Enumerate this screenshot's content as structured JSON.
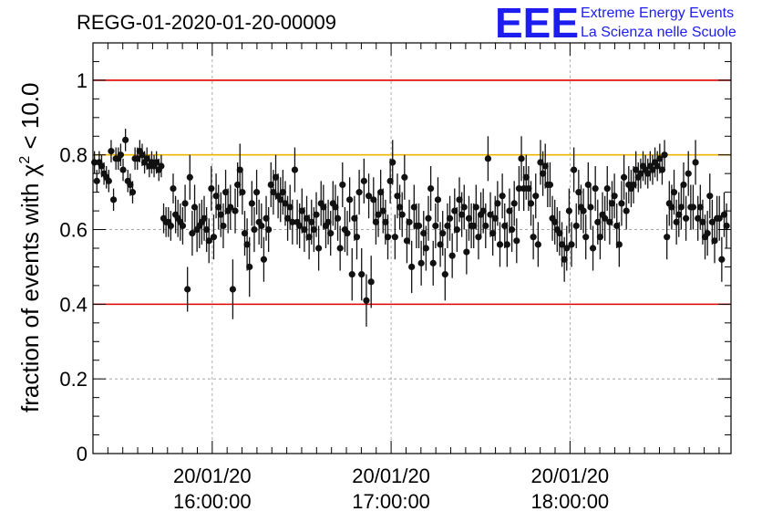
{
  "chart_data": {
    "type": "scatter",
    "title": "REGG-01-2020-01-20-00009",
    "ylabel_prefix": "fraction of events with χ",
    "ylabel_sup": "2",
    "ylabel_suffix": " < 10.0",
    "ylim": [
      0,
      1.1
    ],
    "y_ticks": [
      0,
      0.2,
      0.4,
      0.6,
      0.8,
      1
    ],
    "y_tick_labels": [
      "0",
      "0.2",
      "0.4",
      "0.6",
      "0.8",
      "1"
    ],
    "x_axis": "time",
    "x_range_minutes": [
      -40,
      174
    ],
    "x_ticks": [
      {
        "minute": 0,
        "date": "20/01/20",
        "time": "16:00:00"
      },
      {
        "minute": 60,
        "date": "20/01/20",
        "time": "17:00:00"
      },
      {
        "minute": 120,
        "date": "20/01/20",
        "time": "18:00:00"
      }
    ],
    "grid": true,
    "reference_lines": [
      {
        "y": 1.0,
        "color": "#e00000"
      },
      {
        "y": 0.8,
        "color": "#f0b400"
      },
      {
        "y": 0.4,
        "color": "#e00000"
      }
    ],
    "marker_color": "#111111",
    "point_minutes_start": -39.5,
    "point_minutes_step": 0.8,
    "series": [
      {
        "y": [
          0.78,
          0.73,
          0.78,
          0.77,
          0.75,
          0.74,
          0.73,
          0.81,
          0.68,
          0.79,
          0.79,
          0.8,
          0.76,
          0.84,
          0.73,
          0.72,
          0.7,
          0.79,
          0.79,
          0.81,
          0.8,
          0.78,
          0.79,
          0.77,
          0.78,
          0.77,
          0.78,
          0.76,
          0.77,
          0.63,
          0.62,
          0.62,
          0.61,
          0.71,
          0.64,
          0.63,
          0.62,
          0.61,
          0.67,
          0.44,
          0.74,
          0.59,
          0.66,
          0.6,
          0.61,
          0.62,
          0.63,
          0.6,
          0.57,
          0.71,
          0.58,
          0.69,
          0.66,
          0.64,
          0.61,
          0.7,
          0.65,
          0.66,
          0.44,
          0.65,
          0.72,
          0.76,
          0.7,
          0.59,
          0.56,
          0.5,
          0.67,
          0.6,
          0.7,
          0.62,
          0.61,
          0.52,
          0.63,
          0.6,
          0.72,
          0.7,
          0.74,
          0.69,
          0.68,
          0.7,
          0.67,
          0.63,
          0.66,
          0.62,
          0.76,
          0.62,
          0.61,
          0.65,
          0.6,
          0.63,
          0.58,
          0.62,
          0.6,
          0.64,
          0.55,
          0.67,
          0.66,
          0.61,
          0.62,
          0.59,
          0.67,
          0.66,
          0.63,
          0.55,
          0.72,
          0.6,
          0.59,
          0.68,
          0.48,
          0.63,
          0.58,
          0.7,
          0.48,
          0.73,
          0.41,
          0.69,
          0.46,
          0.68,
          0.62,
          0.64,
          0.7,
          0.65,
          0.62,
          0.58,
          0.73,
          0.78,
          0.58,
          0.69,
          0.66,
          0.64,
          0.74,
          0.57,
          0.62,
          0.5,
          0.66,
          0.61,
          0.61,
          0.51,
          0.59,
          0.55,
          0.63,
          0.71,
          0.51,
          0.61,
          0.68,
          0.56,
          0.59,
          0.48,
          0.61,
          0.63,
          0.53,
          0.65,
          0.6,
          0.68,
          0.64,
          0.66,
          0.54,
          0.63,
          0.61,
          0.61,
          0.66,
          0.58,
          0.64,
          0.65,
          0.61,
          0.79,
          0.64,
          0.59,
          0.63,
          0.67,
          0.56,
          0.69,
          0.61,
          0.56,
          0.65,
          0.6,
          0.67,
          0.57,
          0.71,
          0.79,
          0.71,
          0.74,
          0.71,
          0.67,
          0.58,
          0.69,
          0.56,
          0.78,
          0.75,
          0.77,
          0.72,
          0.72,
          0.63,
          0.62,
          0.6,
          0.59,
          0.56,
          0.52,
          0.55,
          0.65,
          0.56,
          0.76,
          0.61,
          0.7,
          0.66,
          0.65,
          0.58,
          0.72,
          0.66,
          0.55,
          0.71,
          0.62,
          0.58,
          0.64,
          0.63,
          0.71,
          0.62,
          0.67,
          0.69,
          0.61,
          0.56,
          0.67,
          0.74,
          0.65,
          0.72,
          0.71,
          0.72,
          0.76,
          0.74,
          0.75,
          0.77,
          0.76,
          0.75,
          0.77,
          0.76,
          0.78,
          0.77,
          0.79,
          0.76,
          0.8,
          0.58,
          0.67,
          0.66,
          0.7,
          0.62,
          0.64,
          0.66,
          0.72,
          0.63,
          0.75,
          0.66,
          0.66,
          0.78,
          0.63,
          0.66,
          0.62,
          0.58,
          0.59,
          0.69,
          0.62,
          0.57,
          0.63,
          0.63,
          0.52,
          0.64,
          0.61
        ],
        "err": [
          0.03,
          0.03,
          0.03,
          0.03,
          0.03,
          0.03,
          0.03,
          0.03,
          0.03,
          0.03,
          0.03,
          0.03,
          0.03,
          0.03,
          0.03,
          0.03,
          0.03,
          0.03,
          0.03,
          0.03,
          0.03,
          0.03,
          0.03,
          0.03,
          0.03,
          0.03,
          0.03,
          0.03,
          0.03,
          0.04,
          0.04,
          0.04,
          0.04,
          0.04,
          0.05,
          0.05,
          0.05,
          0.05,
          0.05,
          0.06,
          0.06,
          0.06,
          0.06,
          0.06,
          0.06,
          0.06,
          0.06,
          0.06,
          0.06,
          0.06,
          0.06,
          0.06,
          0.06,
          0.06,
          0.06,
          0.06,
          0.06,
          0.06,
          0.08,
          0.06,
          0.06,
          0.07,
          0.06,
          0.06,
          0.07,
          0.08,
          0.06,
          0.06,
          0.06,
          0.06,
          0.06,
          0.06,
          0.06,
          0.06,
          0.06,
          0.06,
          0.06,
          0.06,
          0.06,
          0.06,
          0.06,
          0.06,
          0.06,
          0.06,
          0.06,
          0.06,
          0.06,
          0.06,
          0.06,
          0.06,
          0.06,
          0.06,
          0.06,
          0.06,
          0.06,
          0.06,
          0.06,
          0.06,
          0.06,
          0.06,
          0.06,
          0.06,
          0.06,
          0.06,
          0.06,
          0.06,
          0.06,
          0.06,
          0.07,
          0.06,
          0.06,
          0.06,
          0.07,
          0.06,
          0.07,
          0.06,
          0.07,
          0.06,
          0.06,
          0.06,
          0.06,
          0.06,
          0.06,
          0.06,
          0.06,
          0.06,
          0.06,
          0.06,
          0.06,
          0.06,
          0.06,
          0.06,
          0.06,
          0.07,
          0.06,
          0.06,
          0.06,
          0.06,
          0.06,
          0.06,
          0.06,
          0.06,
          0.06,
          0.06,
          0.06,
          0.06,
          0.06,
          0.07,
          0.06,
          0.06,
          0.06,
          0.06,
          0.06,
          0.06,
          0.06,
          0.06,
          0.06,
          0.06,
          0.06,
          0.06,
          0.06,
          0.06,
          0.06,
          0.06,
          0.06,
          0.06,
          0.06,
          0.06,
          0.06,
          0.06,
          0.06,
          0.06,
          0.06,
          0.06,
          0.06,
          0.06,
          0.06,
          0.06,
          0.06,
          0.06,
          0.06,
          0.06,
          0.06,
          0.06,
          0.06,
          0.06,
          0.06,
          0.06,
          0.06,
          0.06,
          0.06,
          0.06,
          0.06,
          0.06,
          0.06,
          0.06,
          0.06,
          0.06,
          0.06,
          0.06,
          0.06,
          0.06,
          0.06,
          0.06,
          0.06,
          0.06,
          0.06,
          0.06,
          0.06,
          0.06,
          0.06,
          0.06,
          0.06,
          0.06,
          0.06,
          0.06,
          0.06,
          0.06,
          0.06,
          0.06,
          0.06,
          0.06,
          0.06,
          0.05,
          0.05,
          0.05,
          0.05,
          0.05,
          0.04,
          0.04,
          0.04,
          0.04,
          0.04,
          0.04,
          0.04,
          0.04,
          0.04,
          0.04,
          0.04,
          0.04,
          0.06,
          0.06,
          0.06,
          0.06,
          0.06,
          0.06,
          0.06,
          0.06,
          0.06,
          0.06,
          0.06,
          0.06,
          0.06,
          0.06,
          0.06,
          0.06,
          0.06,
          0.06,
          0.06,
          0.06,
          0.06,
          0.06,
          0.06,
          0.06,
          0.06,
          0.06
        ]
      }
    ]
  },
  "logo": {
    "mark": "EEE",
    "line1": "Extreme Energy Events",
    "line2": "La Scienza nelle Scuole",
    "color": "#1d1df0"
  }
}
